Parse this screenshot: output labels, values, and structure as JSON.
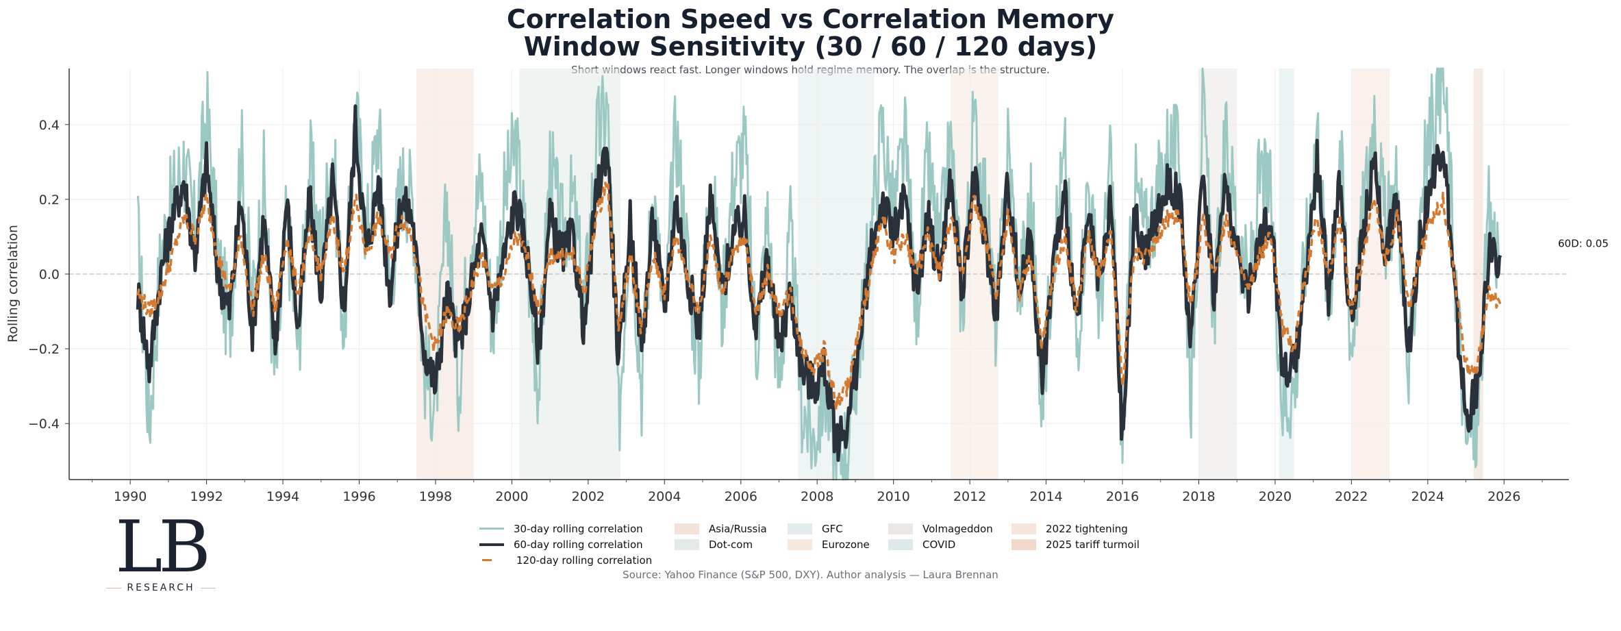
{
  "header": {
    "title_line1": "Correlation Speed vs Correlation Memory",
    "title_line2": "Window Sensitivity (30 / 60 / 120 days)",
    "subtitle": "Short windows react fast. Longer windows hold regime memory. The overlap is the structure."
  },
  "logo": {
    "mark": "LB",
    "text": "RESEARCH"
  },
  "source": "Source: Yahoo Finance (S&P 500, DXY). Author analysis — Laura Brennan",
  "chart_data": {
    "type": "line",
    "title": "Correlation Speed vs Correlation Memory — Window Sensitivity (30 / 60 / 120 days)",
    "xlabel": "",
    "ylabel": "Rolling correlation",
    "xlim": [
      1988.4,
      2027.7
    ],
    "ylim": [
      -0.55,
      0.55
    ],
    "x_ticks": [
      1990,
      1992,
      1994,
      1996,
      1998,
      2000,
      2002,
      2004,
      2006,
      2008,
      2010,
      2012,
      2014,
      2016,
      2018,
      2020,
      2022,
      2024,
      2026
    ],
    "y_ticks": [
      -0.4,
      -0.2,
      0.0,
      0.2,
      0.4
    ],
    "y_tick_labels": [
      "−0.4",
      "−0.2",
      "0.0",
      "0.2",
      "0.4"
    ],
    "grid": true,
    "zero_line": true,
    "legend_position": "bottom-center",
    "annotation": {
      "text": "60D: 0.05",
      "x": 2027.7,
      "y": 0.05
    },
    "colors": {
      "s30": "#9cc8c4",
      "s60": "#2b313b",
      "s120": "#d4792f"
    },
    "events": [
      {
        "name": "Asia/Russia",
        "start": 1997.5,
        "end": 1999.0,
        "color": "#f3e2da"
      },
      {
        "name": "Dot-com",
        "start": 2000.2,
        "end": 2002.85,
        "color": "#e2ebe7"
      },
      {
        "name": "GFC",
        "start": 2007.5,
        "end": 2009.5,
        "color": "#e2ecec"
      },
      {
        "name": "Eurozone",
        "start": 2011.5,
        "end": 2012.75,
        "color": "#f6e8dc"
      },
      {
        "name": "Volmageddon",
        "start": 2018.0,
        "end": 2019.0,
        "color": "#ebe8e3"
      },
      {
        "name": "COVID",
        "start": 2020.1,
        "end": 2020.5,
        "color": "#dde9ea"
      },
      {
        "name": "2022 tightening",
        "start": 2022.0,
        "end": 2023.0,
        "color": "#f5e5dc"
      },
      {
        "name": "2025 tariff turmoil",
        "start": 2025.2,
        "end": 2025.45,
        "color": "#f1d9cc"
      }
    ],
    "x": [
      1990.2,
      1990.5,
      1990.8,
      1991.1,
      1991.4,
      1991.7,
      1992.0,
      1992.3,
      1992.6,
      1992.9,
      1993.2,
      1993.5,
      1993.8,
      1994.1,
      1994.4,
      1994.7,
      1995.0,
      1995.3,
      1995.6,
      1995.9,
      1996.2,
      1996.5,
      1996.8,
      1997.1,
      1997.4,
      1997.7,
      1998.0,
      1998.3,
      1998.6,
      1998.9,
      1999.2,
      1999.5,
      1999.8,
      2000.1,
      2000.4,
      2000.7,
      2001.0,
      2001.3,
      2001.6,
      2001.9,
      2002.2,
      2002.5,
      2002.8,
      2003.1,
      2003.4,
      2003.7,
      2004.0,
      2004.3,
      2004.6,
      2004.9,
      2005.2,
      2005.5,
      2005.8,
      2006.1,
      2006.4,
      2006.7,
      2007.0,
      2007.3,
      2007.6,
      2007.9,
      2008.2,
      2008.5,
      2008.8,
      2009.1,
      2009.4,
      2009.7,
      2010.0,
      2010.3,
      2010.6,
      2010.9,
      2011.2,
      2011.5,
      2011.8,
      2012.1,
      2012.4,
      2012.7,
      2013.0,
      2013.3,
      2013.6,
      2013.9,
      2014.2,
      2014.5,
      2014.8,
      2015.1,
      2015.4,
      2015.7,
      2016.0,
      2016.3,
      2016.6,
      2016.9,
      2017.2,
      2017.5,
      2017.8,
      2018.1,
      2018.4,
      2018.7,
      2019.0,
      2019.3,
      2019.6,
      2019.9,
      2020.2,
      2020.5,
      2020.8,
      2021.1,
      2021.4,
      2021.7,
      2022.0,
      2022.3,
      2022.6,
      2022.9,
      2023.2,
      2023.5,
      2023.8,
      2024.1,
      2024.4,
      2024.7,
      2025.0,
      2025.3,
      2025.6,
      2025.9
    ],
    "series": [
      {
        "name": "30-day rolling correlation",
        "values": [
          0.1,
          -0.4,
          0.05,
          0.2,
          0.3,
          0.1,
          0.45,
          0.05,
          -0.15,
          0.35,
          -0.1,
          0.25,
          -0.3,
          0.15,
          -0.2,
          0.3,
          0.05,
          0.35,
          -0.15,
          0.45,
          0.1,
          0.4,
          -0.05,
          0.25,
          0.2,
          -0.25,
          -0.35,
          0.2,
          -0.3,
          0.1,
          0.25,
          -0.15,
          0.2,
          0.35,
          0.05,
          -0.3,
          0.3,
          0.1,
          0.2,
          -0.1,
          0.35,
          0.45,
          -0.4,
          0.2,
          -0.3,
          0.25,
          -0.15,
          0.4,
          0.05,
          -0.25,
          0.3,
          -0.1,
          0.25,
          0.35,
          -0.2,
          0.15,
          -0.3,
          0.1,
          -0.35,
          -0.45,
          -0.3,
          -0.5,
          -0.45,
          -0.2,
          0.1,
          0.4,
          0.15,
          0.35,
          -0.1,
          0.3,
          0.05,
          0.35,
          -0.1,
          0.4,
          0.2,
          -0.15,
          0.35,
          -0.05,
          0.2,
          -0.35,
          0.1,
          0.3,
          -0.2,
          0.25,
          -0.1,
          0.3,
          -0.45,
          0.25,
          0.1,
          0.2,
          0.35,
          0.3,
          -0.3,
          0.45,
          -0.1,
          0.35,
          0.15,
          -0.05,
          0.25,
          0.2,
          -0.35,
          -0.3,
          0.05,
          0.4,
          -0.1,
          0.35,
          -0.2,
          0.15,
          0.45,
          0.1,
          0.25,
          -0.3,
          0.2,
          0.4,
          0.55,
          0.05,
          -0.45,
          -0.4,
          0.15,
          0.05
        ]
      },
      {
        "name": "60-day rolling correlation",
        "values": [
          -0.05,
          -0.25,
          0.0,
          0.15,
          0.25,
          0.05,
          0.3,
          0.0,
          -0.1,
          0.2,
          -0.15,
          0.15,
          -0.2,
          0.2,
          -0.15,
          0.2,
          -0.05,
          0.25,
          -0.1,
          0.4,
          0.05,
          0.25,
          -0.05,
          0.2,
          0.15,
          -0.2,
          -0.3,
          -0.05,
          -0.2,
          -0.05,
          0.1,
          -0.1,
          0.05,
          0.2,
          0.05,
          -0.2,
          0.15,
          0.05,
          0.1,
          -0.15,
          0.2,
          0.35,
          -0.25,
          0.15,
          -0.2,
          0.15,
          -0.1,
          0.2,
          0.0,
          -0.15,
          0.2,
          -0.05,
          0.1,
          0.15,
          -0.15,
          0.05,
          -0.2,
          -0.05,
          -0.25,
          -0.3,
          -0.25,
          -0.45,
          -0.4,
          -0.2,
          0.05,
          0.2,
          0.1,
          0.2,
          -0.05,
          0.15,
          0.0,
          0.25,
          -0.05,
          0.25,
          0.1,
          -0.1,
          0.25,
          -0.05,
          0.1,
          -0.3,
          0.05,
          0.2,
          -0.15,
          0.15,
          -0.05,
          0.2,
          -0.45,
          0.15,
          0.05,
          0.15,
          0.25,
          0.2,
          -0.2,
          0.3,
          -0.05,
          0.25,
          0.05,
          -0.05,
          0.1,
          0.15,
          -0.25,
          -0.25,
          0.0,
          0.3,
          -0.05,
          0.25,
          -0.15,
          0.1,
          0.3,
          0.05,
          0.2,
          -0.2,
          0.1,
          0.25,
          0.35,
          -0.05,
          -0.4,
          -0.3,
          0.05,
          0.05
        ]
      },
      {
        "name": "120-day rolling correlation",
        "values": [
          -0.05,
          -0.1,
          -0.05,
          0.05,
          0.15,
          0.1,
          0.2,
          0.05,
          -0.05,
          0.1,
          -0.1,
          0.05,
          -0.1,
          0.1,
          -0.05,
          0.1,
          0.0,
          0.15,
          0.0,
          0.2,
          0.05,
          0.15,
          0.05,
          0.15,
          0.1,
          -0.1,
          -0.2,
          -0.1,
          -0.15,
          -0.05,
          0.05,
          -0.05,
          0.0,
          0.1,
          0.05,
          -0.1,
          0.05,
          0.05,
          0.05,
          -0.05,
          0.15,
          0.25,
          -0.15,
          0.05,
          -0.15,
          0.05,
          -0.05,
          0.1,
          0.0,
          -0.1,
          0.1,
          -0.05,
          0.05,
          0.1,
          -0.1,
          0.0,
          -0.1,
          -0.05,
          -0.2,
          -0.25,
          -0.2,
          -0.35,
          -0.3,
          -0.15,
          0.0,
          0.15,
          0.05,
          0.1,
          0.0,
          0.1,
          0.0,
          0.15,
          0.0,
          0.2,
          0.1,
          -0.05,
          0.15,
          -0.05,
          0.05,
          -0.2,
          0.0,
          0.1,
          -0.1,
          0.1,
          0.0,
          0.1,
          -0.3,
          0.05,
          0.05,
          0.1,
          0.15,
          0.15,
          -0.1,
          0.15,
          0.0,
          0.15,
          0.05,
          -0.05,
          0.05,
          0.1,
          -0.15,
          -0.2,
          0.0,
          0.15,
          0.0,
          0.15,
          -0.1,
          0.05,
          0.2,
          0.05,
          0.15,
          -0.1,
          0.05,
          0.15,
          0.2,
          0.0,
          -0.25,
          -0.25,
          -0.05,
          -0.08
        ]
      }
    ]
  },
  "legend": {
    "lines": [
      {
        "label": "30-day rolling correlation",
        "color": "#9cc8c4",
        "style": "solid"
      },
      {
        "label": "60-day rolling correlation",
        "color": "#2b313b",
        "style": "solid"
      },
      {
        "label": "120-day rolling correlation",
        "color": "#d4792f",
        "style": "dashed"
      }
    ]
  }
}
